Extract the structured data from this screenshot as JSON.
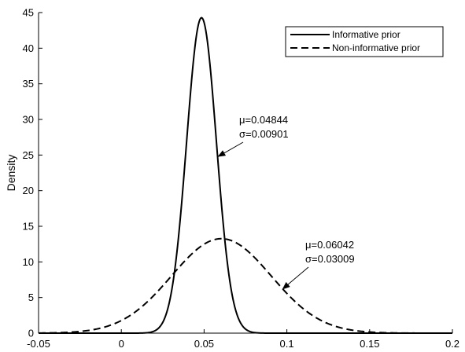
{
  "chart_data": {
    "type": "line",
    "title": "",
    "xlabel": "",
    "ylabel": "Density",
    "xlim": [
      -0.05,
      0.2
    ],
    "ylim": [
      0,
      45
    ],
    "x_ticks": [
      "-0.05",
      "0",
      "0.05",
      "0.1",
      "0.15",
      "0.2"
    ],
    "x_tick_values": [
      -0.05,
      0,
      0.05,
      0.1,
      0.15,
      0.2
    ],
    "y_ticks": [
      "0",
      "5",
      "10",
      "15",
      "20",
      "25",
      "30",
      "35",
      "40",
      "45"
    ],
    "y_tick_values": [
      0,
      5,
      10,
      15,
      20,
      25,
      30,
      35,
      40,
      45
    ],
    "grid": false,
    "legend_position": "top-right",
    "series": [
      {
        "name": "Informative prior",
        "distribution": "normal",
        "mu": 0.04844,
        "sigma": 0.00901,
        "line_style": "solid",
        "color": "#000000"
      },
      {
        "name": "Non-informative prior",
        "distribution": "normal",
        "mu": 0.06042,
        "sigma": 0.03009,
        "line_style": "dashed",
        "color": "#000000"
      }
    ],
    "annotations": [
      {
        "line1": "μ=0.04844",
        "line2": "σ=0.00901",
        "arrow_to": {
          "x": 0.0585,
          "y": 24.8
        }
      },
      {
        "line1": "μ=0.06042",
        "line2": "σ=0.03009",
        "arrow_to": {
          "x": 0.0975,
          "y": 6.2
        }
      }
    ]
  }
}
